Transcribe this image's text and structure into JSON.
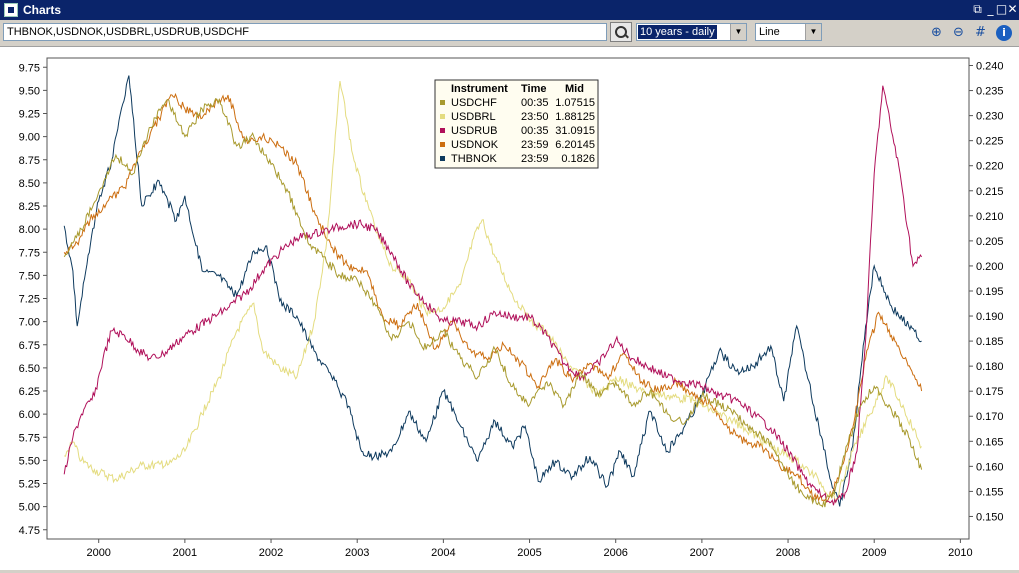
{
  "window": {
    "title": "Charts"
  },
  "toolbar": {
    "symbols": "THBNOK,USDNOK,USDBRL,USDRUB,USDCHF",
    "period": "10 years - daily",
    "chart_type": "Line",
    "icons": [
      "search-icon",
      "zoom-in-icon",
      "zoom-out-icon",
      "grid-icon",
      "info-icon"
    ]
  },
  "legend": {
    "headers": [
      "Instrument",
      "Time",
      "Mid"
    ],
    "rows": [
      {
        "name": "USDCHF",
        "time": "00:35",
        "mid": "1.07515",
        "color": "#a89a2e"
      },
      {
        "name": "USDBRL",
        "time": "23:50",
        "mid": "1.88125",
        "color": "#e4dc80"
      },
      {
        "name": "USDRUB",
        "time": "00:35",
        "mid": "31.0915",
        "color": "#b0105a"
      },
      {
        "name": "USDNOK",
        "time": "23:59",
        "mid": "6.20145",
        "color": "#cc6e10"
      },
      {
        "name": "THBNOK",
        "time": "23:59",
        "mid": "0.1826",
        "color": "#0e3a5e"
      }
    ]
  },
  "chart_data": {
    "type": "line",
    "x_ticks": [
      "2000",
      "2001",
      "2002",
      "2003",
      "2004",
      "2005",
      "2006",
      "2007",
      "2008",
      "2009",
      "2010"
    ],
    "xlim": [
      1999.4,
      2010.1
    ],
    "left_axis": {
      "ylim": [
        4.65,
        9.85
      ],
      "ticks": [
        "9.75",
        "9.50",
        "9.25",
        "9.00",
        "8.75",
        "8.50",
        "8.25",
        "8.00",
        "7.75",
        "7.50",
        "7.25",
        "7.00",
        "6.75",
        "6.50",
        "6.25",
        "6.00",
        "5.75",
        "5.50",
        "5.25",
        "5.00",
        "4.75"
      ]
    },
    "right_axis": {
      "ylim": [
        0.1455,
        0.2415
      ],
      "ticks": [
        "0.240",
        "0.235",
        "0.230",
        "0.225",
        "0.220",
        "0.215",
        "0.210",
        "0.205",
        "0.200",
        "0.195",
        "0.190",
        "0.185",
        "0.180",
        "0.175",
        "0.170",
        "0.165",
        "0.160",
        "0.155",
        "0.150"
      ]
    },
    "grid": false,
    "legend_position": "top-center",
    "series": [
      {
        "name": "THBNOK",
        "axis": "right",
        "color": "#0e3a5e",
        "x": [
          1999.6,
          1999.7,
          1999.75,
          1999.85,
          2000.0,
          2000.15,
          2000.35,
          2000.5,
          2000.7,
          2000.9,
          2001.0,
          2001.2,
          2001.4,
          2001.6,
          2001.8,
          2001.95,
          2002.1,
          2002.3,
          2002.5,
          2002.7,
          2002.9,
          2003.05,
          2003.2,
          2003.4,
          2003.6,
          2003.8,
          2004.0,
          2004.2,
          2004.4,
          2004.6,
          2004.8,
          2004.95,
          2005.1,
          2005.3,
          2005.5,
          2005.7,
          2005.9,
          2006.05,
          2006.2,
          2006.4,
          2006.6,
          2006.8,
          2007.0,
          2007.2,
          2007.4,
          2007.6,
          2007.8,
          2007.95,
          2008.1,
          2008.3,
          2008.5,
          2008.6,
          2008.75,
          2008.9,
          2009.0,
          2009.2,
          2009.4,
          2009.55
        ],
        "y": [
          0.208,
          0.199,
          0.188,
          0.199,
          0.213,
          0.221,
          0.238,
          0.212,
          0.217,
          0.209,
          0.214,
          0.199,
          0.198,
          0.194,
          0.203,
          0.204,
          0.193,
          0.19,
          0.183,
          0.178,
          0.172,
          0.163,
          0.162,
          0.163,
          0.171,
          0.165,
          0.175,
          0.168,
          0.161,
          0.169,
          0.164,
          0.168,
          0.157,
          0.161,
          0.158,
          0.162,
          0.156,
          0.163,
          0.158,
          0.171,
          0.163,
          0.168,
          0.174,
          0.183,
          0.179,
          0.18,
          0.184,
          0.173,
          0.188,
          0.172,
          0.157,
          0.152,
          0.164,
          0.188,
          0.2,
          0.192,
          0.188,
          0.185
        ]
      },
      {
        "name": "USDNOK",
        "axis": "left",
        "color": "#cc6e10",
        "x": [
          1999.6,
          1999.75,
          1999.9,
          2000.1,
          2000.3,
          2000.5,
          2000.7,
          2000.85,
          2001.0,
          2001.2,
          2001.4,
          2001.5,
          2001.7,
          2001.9,
          2002.1,
          2002.3,
          2002.5,
          2002.7,
          2002.9,
          2003.1,
          2003.3,
          2003.5,
          2003.7,
          2003.9,
          2004.1,
          2004.3,
          2004.5,
          2004.7,
          2004.9,
          2005.1,
          2005.3,
          2005.5,
          2005.7,
          2005.9,
          2006.1,
          2006.3,
          2006.5,
          2006.7,
          2006.9,
          2007.1,
          2007.3,
          2007.5,
          2007.7,
          2007.9,
          2008.1,
          2008.3,
          2008.45,
          2008.6,
          2008.75,
          2008.9,
          2009.05,
          2009.2,
          2009.35,
          2009.55
        ],
        "y": [
          7.75,
          7.85,
          8.1,
          8.3,
          8.45,
          8.85,
          9.2,
          9.45,
          9.3,
          9.2,
          9.4,
          9.45,
          8.95,
          9.0,
          8.9,
          8.7,
          8.2,
          7.8,
          7.6,
          7.55,
          7.05,
          6.95,
          7.2,
          6.7,
          7.0,
          6.7,
          6.6,
          6.75,
          6.55,
          6.3,
          6.6,
          6.35,
          6.55,
          6.4,
          6.65,
          6.35,
          6.25,
          6.35,
          6.2,
          6.1,
          5.85,
          5.7,
          5.65,
          5.45,
          5.35,
          5.1,
          5.05,
          5.35,
          5.85,
          6.6,
          7.1,
          6.85,
          6.6,
          6.25
        ]
      },
      {
        "name": "USDBRL",
        "axis": "left",
        "color": "#e4dc80",
        "x": [
          1999.6,
          1999.7,
          1999.8,
          1999.95,
          2000.2,
          2000.5,
          2000.8,
          2001.0,
          2001.2,
          2001.4,
          2001.6,
          2001.8,
          2001.9,
          2002.1,
          2002.3,
          2002.5,
          2002.65,
          2002.8,
          2002.95,
          2003.1,
          2003.25,
          2003.4,
          2003.6,
          2003.8,
          2004.0,
          2004.2,
          2004.35,
          2004.45,
          2004.6,
          2004.8,
          2005.0,
          2005.2,
          2005.4,
          2005.6,
          2005.8,
          2006.0,
          2006.3,
          2006.6,
          2006.9,
          2007.2,
          2007.5,
          2007.8,
          2008.1,
          2008.35,
          2008.55,
          2008.75,
          2008.95,
          2009.15,
          2009.35,
          2009.55
        ],
        "y": [
          5.55,
          5.7,
          5.5,
          5.4,
          5.3,
          5.45,
          5.45,
          5.6,
          6.0,
          6.4,
          6.9,
          7.2,
          6.7,
          6.5,
          6.4,
          7.0,
          7.9,
          9.6,
          8.8,
          8.3,
          7.9,
          7.6,
          7.45,
          7.1,
          7.15,
          7.4,
          7.9,
          8.1,
          7.7,
          7.3,
          7.0,
          6.9,
          6.6,
          6.4,
          6.2,
          6.4,
          6.25,
          6.2,
          6.15,
          6.0,
          5.85,
          5.65,
          5.5,
          5.3,
          5.05,
          5.6,
          6.0,
          6.4,
          6.05,
          5.65
        ]
      },
      {
        "name": "USDRUB",
        "axis": "left",
        "color": "#b0105a",
        "x": [
          1999.6,
          1999.7,
          1999.8,
          1999.95,
          2000.05,
          2000.15,
          2000.3,
          2000.45,
          2000.6,
          2000.75,
          2001.0,
          2001.25,
          2001.5,
          2001.75,
          2001.9,
          2002.1,
          2002.3,
          2002.5,
          2002.7,
          2002.9,
          2003.05,
          2003.2,
          2003.4,
          2003.6,
          2003.8,
          2004.0,
          2004.2,
          2004.4,
          2004.6,
          2004.8,
          2005.0,
          2005.2,
          2005.4,
          2005.6,
          2005.8,
          2006.0,
          2006.2,
          2006.4,
          2006.6,
          2006.8,
          2007.0,
          2007.2,
          2007.4,
          2007.6,
          2007.8,
          2008.0,
          2008.2,
          2008.35,
          2008.5,
          2008.65,
          2008.8,
          2008.9,
          2009.0,
          2009.1,
          2009.3,
          2009.45,
          2009.55
        ],
        "y": [
          5.35,
          5.75,
          6.0,
          6.2,
          6.6,
          6.9,
          6.85,
          6.7,
          6.6,
          6.65,
          6.85,
          7.0,
          7.15,
          7.35,
          7.55,
          7.75,
          7.9,
          7.95,
          8.0,
          8.05,
          8.05,
          8.0,
          7.75,
          7.4,
          7.2,
          7.0,
          7.0,
          6.95,
          7.1,
          7.05,
          7.05,
          6.85,
          6.55,
          6.4,
          6.55,
          6.8,
          6.6,
          6.5,
          6.4,
          6.35,
          6.3,
          6.2,
          6.15,
          6.0,
          5.85,
          5.6,
          5.3,
          5.15,
          5.05,
          5.1,
          5.6,
          6.8,
          8.6,
          9.55,
          8.6,
          7.6,
          7.7
        ]
      },
      {
        "name": "USDCHF",
        "axis": "left",
        "color": "#a89a2e",
        "x": [
          1999.6,
          1999.8,
          2000.0,
          2000.2,
          2000.4,
          2000.6,
          2000.8,
          2001.0,
          2001.2,
          2001.4,
          2001.6,
          2001.8,
          2002.0,
          2002.2,
          2002.4,
          2002.6,
          2002.8,
          2003.0,
          2003.2,
          2003.4,
          2003.6,
          2003.8,
          2004.0,
          2004.2,
          2004.4,
          2004.6,
          2004.8,
          2005.0,
          2005.2,
          2005.4,
          2005.6,
          2005.8,
          2006.0,
          2006.2,
          2006.4,
          2006.6,
          2006.8,
          2007.0,
          2007.2,
          2007.4,
          2007.6,
          2007.8,
          2008.0,
          2008.2,
          2008.4,
          2008.55,
          2008.7,
          2008.85,
          2009.0,
          2009.2,
          2009.4,
          2009.55
        ],
        "y": [
          7.7,
          8.0,
          8.4,
          8.8,
          8.6,
          9.1,
          9.4,
          9.0,
          9.3,
          9.4,
          8.9,
          9.0,
          8.7,
          8.4,
          7.9,
          7.7,
          7.5,
          7.45,
          7.2,
          6.8,
          7.0,
          6.7,
          6.9,
          6.6,
          6.4,
          6.7,
          6.3,
          6.1,
          6.35,
          6.1,
          6.45,
          6.2,
          6.35,
          6.1,
          6.25,
          6.0,
          5.9,
          6.2,
          6.1,
          6.0,
          5.8,
          5.7,
          5.35,
          5.1,
          5.0,
          5.2,
          5.7,
          6.1,
          6.3,
          6.05,
          5.75,
          5.4
        ]
      }
    ]
  }
}
